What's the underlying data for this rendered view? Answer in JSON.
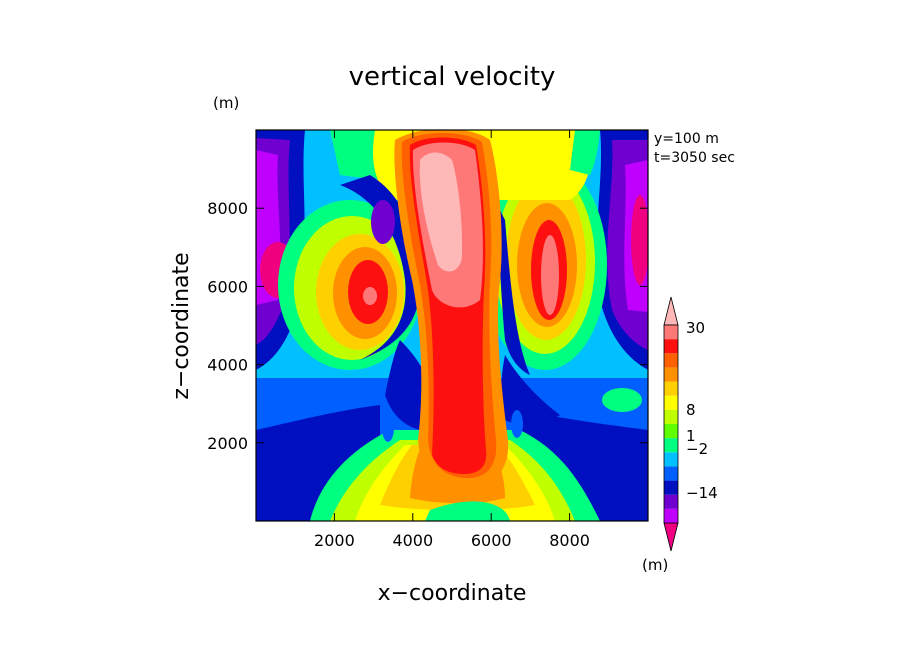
{
  "chart_data": {
    "type": "heatmap",
    "title": "vertical velocity",
    "xlabel": "x−coordinate",
    "ylabel": "z−coordinate",
    "y_unit": "(m)",
    "colorbar_unit": "(m)",
    "annotations": [
      "y=100 m",
      "t=3050 sec"
    ],
    "xlim": [
      0,
      10000
    ],
    "ylim": [
      0,
      10000
    ],
    "xticks": [
      2000,
      4000,
      6000,
      8000
    ],
    "yticks": [
      2000,
      4000,
      6000,
      8000
    ],
    "xtick_labels": [
      "2000",
      "4000",
      "6000",
      "8000"
    ],
    "ytick_labels": [
      "2000",
      "4000",
      "6000",
      "8000"
    ],
    "colorbar": {
      "labeled_levels": [
        "30",
        "8",
        "1",
        "−2",
        "−14"
      ],
      "colors": [
        "#f00080",
        "#c000ff",
        "#7000d0",
        "#0010c0",
        "#0060ff",
        "#00c0ff",
        "#00ff80",
        "#60ff00",
        "#c0ff00",
        "#ffff00",
        "#ffd000",
        "#ff9000",
        "#ff6000",
        "#ff1010",
        "#ff7878",
        "#ffb8b8"
      ]
    }
  }
}
